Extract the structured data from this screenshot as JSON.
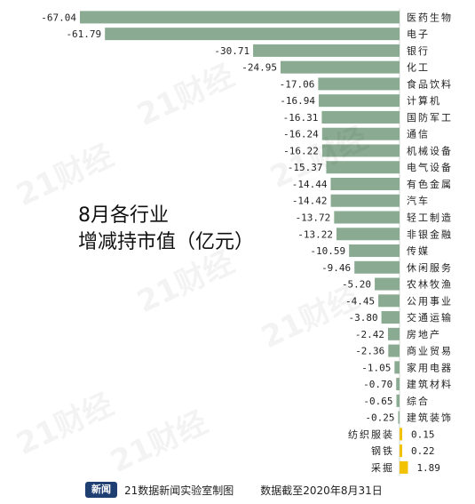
{
  "title": {
    "line1": "8月各行业",
    "line2": "增减持市值（亿元）"
  },
  "watermark_text": "21财经",
  "footer": {
    "logo_text": "新闻",
    "credit": "21数据新闻实验室制图",
    "note": "数据截至2020年8月31日"
  },
  "colors": {
    "negative": "#8aaa91",
    "positive": "#f2c200",
    "label_text": "#222222",
    "axis": "#555555"
  },
  "chart_data": {
    "type": "bar",
    "orientation": "horizontal",
    "title": "8月各行业增减持市值（亿元）",
    "unit": "亿元",
    "categories": [
      "医药生物",
      "电子",
      "银行",
      "化工",
      "食品饮料",
      "计算机",
      "国防军工",
      "通信",
      "机械设备",
      "电气设备",
      "有色金属",
      "汽车",
      "轻工制造",
      "非银金融",
      "传媒",
      "休闲服务",
      "农林牧渔",
      "公用事业",
      "交通运输",
      "房地产",
      "商业贸易",
      "家用电器",
      "建筑材料",
      "综合",
      "建筑装饰",
      "纺织服装",
      "钢铁",
      "采掘"
    ],
    "values": [
      -67.04,
      -61.79,
      -30.71,
      -24.95,
      -17.06,
      -16.94,
      -16.31,
      -16.24,
      -16.22,
      -15.37,
      -14.44,
      -14.42,
      -13.72,
      -13.22,
      -10.59,
      -9.46,
      -5.2,
      -4.45,
      -3.8,
      -2.42,
      -2.36,
      -1.05,
      -0.7,
      -0.65,
      -0.25,
      0.15,
      0.22,
      1.89
    ],
    "value_labels": [
      "-67.04",
      "-61.79",
      "-30.71",
      "-24.95",
      "-17.06",
      "-16.94",
      "-16.31",
      "-16.24",
      "-16.22",
      "-15.37",
      "-14.44",
      "-14.42",
      "-13.72",
      "-13.22",
      "-10.59",
      "-9.46",
      "-5.20",
      "-4.45",
      "-3.80",
      "-2.42",
      "-2.36",
      "-1.05",
      "-0.70",
      "-0.65",
      "-0.25",
      "0.15",
      "0.22",
      "1.89"
    ],
    "grid": false,
    "legend": "none"
  }
}
